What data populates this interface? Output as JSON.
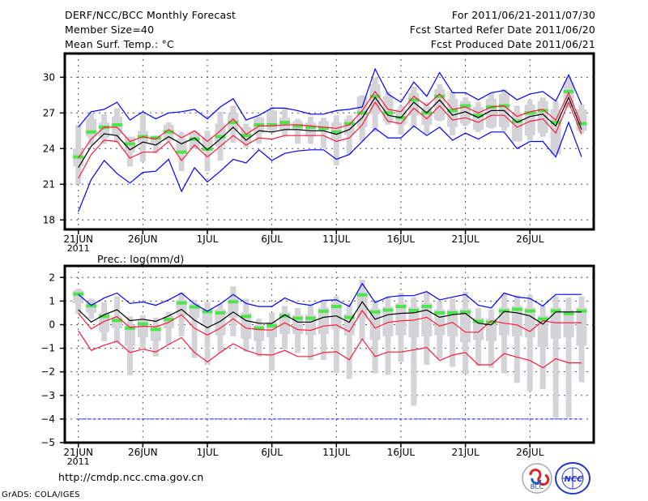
{
  "header": {
    "title": "DERF/NCC/BCC Monthly Forecast",
    "member_size": "Member Size=40",
    "variable": "Mean Surf. Temp.: °C",
    "period": "For 2011/06/21-2011/07/30",
    "started": "Fcst Started Refer Date 2011/06/20",
    "produced": "Fcst Produced Date 2011/06/21"
  },
  "footer": {
    "url": "http://cmdp.ncc.cma.gov.cn",
    "credit": "GrADS: COLA/IGES",
    "logo_bcc": "BCC",
    "logo_ncc": "NCC"
  },
  "colors": {
    "bound": "#0000ff",
    "spread": "#ff1a3c",
    "mean": "#000000",
    "median": "#4ce64c",
    "box": "#d3d3d8"
  },
  "chart_data": [
    {
      "type": "line",
      "title": "Mean Surf. Temp.: °C",
      "x_tick_labels": [
        "21JUN",
        "26JUN",
        "1JUL",
        "6JUL",
        "11JUL",
        "16JUL",
        "21JUL",
        "26JUL"
      ],
      "x_year_label": "2011",
      "x_tick_days": [
        0,
        5,
        10,
        15,
        20,
        25,
        30,
        35
      ],
      "days": 40,
      "ylim": [
        17.2,
        32.0
      ],
      "yticks": [
        18,
        21,
        24,
        27,
        30
      ],
      "ytick_labels": [
        "18",
        "21",
        "24",
        "27",
        "30"
      ],
      "grid": true,
      "series": {
        "max": [
          25.8,
          27.1,
          27.3,
          27.9,
          26.4,
          27.1,
          26.5,
          27.0,
          27.1,
          27.3,
          26.5,
          27.5,
          28.2,
          26.4,
          26.8,
          27.4,
          27.4,
          27.2,
          26.9,
          26.9,
          27.2,
          27.3,
          27.5,
          30.7,
          28.6,
          27.9,
          29.6,
          28.4,
          30.4,
          28.7,
          28.7,
          28.1,
          28.7,
          28.9,
          28.1,
          28.6,
          28.8,
          28.0,
          30.2,
          27.7
        ],
        "min": [
          18.7,
          21.4,
          23.0,
          21.9,
          21.1,
          22.0,
          22.1,
          23.1,
          20.4,
          22.4,
          21.2,
          22.1,
          23.1,
          22.8,
          23.9,
          23.0,
          23.6,
          23.8,
          23.9,
          23.9,
          23.1,
          23.5,
          24.6,
          25.7,
          24.9,
          24.9,
          25.9,
          25.1,
          25.8,
          24.7,
          25.3,
          24.8,
          25.4,
          25.4,
          24.0,
          24.6,
          24.6,
          23.3,
          26.2,
          23.3
        ],
        "upper": [
          23.2,
          24.8,
          25.8,
          25.8,
          24.6,
          25.0,
          24.8,
          25.6,
          24.9,
          25.5,
          24.6,
          25.5,
          26.5,
          25.2,
          25.9,
          25.9,
          26.0,
          26.0,
          25.9,
          25.8,
          25.7,
          26.0,
          27.2,
          28.8,
          27.3,
          27.1,
          28.4,
          27.6,
          28.6,
          27.3,
          27.5,
          27.0,
          27.5,
          27.6,
          26.7,
          27.1,
          27.3,
          26.4,
          28.7,
          26.0
        ],
        "lower": [
          21.5,
          23.5,
          24.7,
          24.6,
          23.2,
          23.7,
          23.7,
          24.6,
          23.0,
          24.3,
          23.3,
          24.2,
          25.1,
          24.3,
          24.9,
          24.8,
          25.1,
          25.1,
          25.1,
          25.1,
          24.6,
          24.9,
          26.0,
          27.9,
          26.3,
          26.1,
          27.4,
          26.5,
          27.6,
          26.4,
          26.6,
          26.2,
          26.8,
          26.8,
          25.8,
          26.3,
          26.5,
          25.3,
          27.9,
          25.2
        ],
        "mean": [
          22.4,
          24.2,
          25.25,
          25.1,
          23.9,
          24.55,
          24.3,
          25.0,
          24.4,
          24.9,
          23.9,
          24.8,
          25.8,
          24.7,
          25.5,
          25.4,
          25.6,
          25.6,
          25.5,
          25.5,
          25.2,
          25.6,
          26.6,
          28.3,
          26.8,
          26.6,
          27.9,
          27.0,
          28.1,
          26.8,
          27.1,
          26.6,
          27.2,
          27.2,
          26.2,
          26.7,
          26.9,
          25.9,
          28.3,
          25.6
        ],
        "median": [
          23.3,
          25.4,
          25.8,
          26.0,
          24.4,
          25.0,
          24.9,
          25.4,
          23.7,
          24.8,
          23.95,
          25.0,
          26.2,
          25.1,
          26.0,
          26.0,
          26.2,
          25.9,
          25.8,
          25.7,
          25.4,
          26.1,
          27.0,
          28.4,
          27.0,
          26.6,
          28.1,
          27.0,
          28.4,
          27.2,
          27.6,
          26.8,
          27.5,
          27.6,
          26.3,
          27.0,
          27.2,
          26.2,
          28.8,
          26.1
        ],
        "whisker_low": [
          21.0,
          24.3,
          24.4,
          24.5,
          22.5,
          22.9,
          23.6,
          24.6,
          22.1,
          24.0,
          22.1,
          23.0,
          24.5,
          24.1,
          24.4,
          25.3,
          25.0,
          24.4,
          24.4,
          24.0,
          22.6,
          23.5,
          24.6,
          25.4,
          26.0,
          25.2,
          25.8,
          25.2,
          26.3,
          25.1,
          25.9,
          25.4,
          25.7,
          25.5,
          25.0,
          24.7,
          25.0,
          23.6,
          27.4,
          25.3
        ],
        "whisker_high": [
          26.0,
          27.0,
          26.9,
          27.4,
          25.0,
          27.0,
          25.1,
          26.2,
          25.4,
          25.5,
          25.5,
          27.1,
          27.6,
          26.1,
          26.7,
          27.5,
          27.4,
          26.5,
          26.7,
          26.6,
          26.8,
          26.8,
          28.5,
          30.0,
          28.8,
          27.6,
          29.2,
          27.9,
          29.4,
          28.8,
          28.3,
          27.9,
          28.7,
          29.0,
          27.6,
          28.1,
          28.3,
          28.0,
          30.0,
          27.7
        ],
        "box_low": [
          22.5,
          25.0,
          24.9,
          25.2,
          23.7,
          24.5,
          24.3,
          24.7,
          23.8,
          24.0,
          23.9,
          24.2,
          25.5,
          24.5,
          25.3,
          25.6,
          25.5,
          25.5,
          25.0,
          25.6,
          24.8,
          25.2,
          25.8,
          26.9,
          26.3,
          26.0,
          26.8,
          26.0,
          26.4,
          25.8,
          26.1,
          25.6,
          25.8,
          25.8,
          24.6,
          25.1,
          25.3,
          23.5,
          27.5,
          25.5
        ],
        "box_high": [
          24.0,
          26.5,
          26.2,
          26.7,
          25.0,
          25.5,
          25.1,
          26.0,
          24.8,
          25.4,
          25.0,
          26.1,
          27.0,
          25.8,
          26.6,
          27.2,
          26.6,
          26.3,
          26.2,
          26.3,
          26.2,
          26.5,
          28.4,
          29.4,
          28.4,
          27.3,
          28.7,
          27.5,
          29.0,
          28.2,
          28.0,
          27.5,
          28.2,
          28.6,
          27.0,
          27.7,
          28.0,
          27.3,
          29.6,
          27.3
        ]
      }
    },
    {
      "type": "line",
      "title": "Prec.: log(mm/d)",
      "x_tick_labels": [
        "21JUN",
        "26JUN",
        "1JUL",
        "6JUL",
        "11JUL",
        "16JUL",
        "21JUL",
        "26JUL"
      ],
      "x_year_label": "2011",
      "x_tick_days": [
        0,
        5,
        10,
        15,
        20,
        25,
        30,
        35
      ],
      "days": 40,
      "ylim": [
        -5,
        2.49
      ],
      "yticks": [
        -5,
        -4,
        -3,
        -2,
        -1,
        0,
        1,
        2
      ],
      "ytick_labels": [
        "−5",
        "−4",
        "−3",
        "−2",
        "−1",
        "0",
        "1",
        "2"
      ],
      "grid": true,
      "reference_line": -4,
      "series": {
        "max": [
          1.28,
          0.82,
          1.13,
          1.34,
          0.9,
          0.96,
          0.82,
          1.05,
          1.34,
          0.88,
          0.57,
          0.88,
          1.28,
          0.9,
          0.77,
          0.77,
          1.13,
          0.9,
          0.82,
          1.03,
          1.05,
          0.77,
          1.74,
          0.94,
          1.17,
          1.23,
          1.23,
          1.4,
          1.05,
          1.17,
          1.28,
          0.82,
          0.71,
          1.34,
          1.17,
          1.11,
          0.79,
          1.28,
          1.28,
          1.28
        ],
        "upper": [
          0.48,
          -0.18,
          0.14,
          0.34,
          -0.11,
          -0.07,
          -0.09,
          0.1,
          0.42,
          -0.15,
          -0.44,
          -0.15,
          0.25,
          -0.15,
          -0.21,
          -0.23,
          0.08,
          -0.21,
          -0.24,
          -0.06,
          -0.01,
          -0.3,
          0.6,
          -0.15,
          0.1,
          0.16,
          0.19,
          0.31,
          -0.06,
          0.1,
          -0.32,
          -0.32,
          0.16,
          0.06,
          -0.01,
          -0.29,
          0.16,
          0.08,
          0.08,
          0.08
        ],
        "lower": [
          -0.26,
          -1.09,
          -0.87,
          -0.7,
          -1.18,
          -1.04,
          -1.16,
          -0.84,
          -0.55,
          -1.18,
          -1.58,
          -1.18,
          -0.81,
          -1.09,
          -1.27,
          -1.29,
          -1.09,
          -1.35,
          -1.35,
          -1.18,
          -1.15,
          -1.49,
          -0.61,
          -1.35,
          -1.16,
          -1.16,
          -1.07,
          -0.97,
          -1.52,
          -1.29,
          -1.18,
          -1.7,
          -1.7,
          -1.22,
          -1.38,
          -1.52,
          -1.83,
          -1.44,
          -1.62,
          -1.62
        ],
        "mean": [
          0.63,
          0.11,
          0.42,
          0.63,
          0.17,
          0.23,
          0.14,
          0.37,
          0.65,
          0.19,
          -0.13,
          0.14,
          0.54,
          0.17,
          0.06,
          0.05,
          0.42,
          0.11,
          0.11,
          0.31,
          0.37,
          0.1,
          0.97,
          0.23,
          0.42,
          0.48,
          0.5,
          0.62,
          0.31,
          0.42,
          0.48,
          0.06,
          -0.01,
          0.56,
          0.5,
          0.37,
          0.02,
          0.54,
          0.54,
          0.54
        ],
        "median": [
          1.3,
          0.8,
          0.35,
          0.18,
          -0.15,
          0.03,
          -0.2,
          0.22,
          0.92,
          0.75,
          0.55,
          0.5,
          0.97,
          0.35,
          -0.15,
          -0.05,
          0.37,
          0.27,
          0.27,
          0.57,
          0.77,
          0.31,
          1.26,
          0.54,
          0.62,
          0.77,
          0.6,
          0.77,
          0.5,
          0.5,
          0.53,
          0.14,
          0.1,
          0.58,
          0.65,
          0.58,
          0.24,
          0.58,
          0.47,
          0.58
        ],
        "whisker_low": [
          0.45,
          0.25,
          -0.7,
          -0.8,
          -2.15,
          -1.0,
          -1.35,
          -0.85,
          -0.5,
          -1.4,
          -1.7,
          -1.2,
          -0.5,
          -1.15,
          -1.35,
          -1.95,
          -1.05,
          -1.2,
          -1.5,
          -1.5,
          -2.05,
          -2.3,
          -0.66,
          -2.06,
          -2.13,
          -1.58,
          -3.44,
          -1.7,
          -1.44,
          -1.79,
          -2.1,
          -1.75,
          -1.83,
          -2.06,
          -2.47,
          -2.82,
          -2.73,
          -3.95,
          -3.95,
          -2.44
        ],
        "whisker_high": [
          1.53,
          1.1,
          0.95,
          1.2,
          0.35,
          0.4,
          0.3,
          0.55,
          1.35,
          1.05,
          0.95,
          0.9,
          1.62,
          1.1,
          0.25,
          0.5,
          0.8,
          0.7,
          0.85,
          1.05,
          1.2,
          0.9,
          1.9,
          1.05,
          1.2,
          1.35,
          1.15,
          1.35,
          1.0,
          1.1,
          1.4,
          0.7,
          0.65,
          1.3,
          1.25,
          1.25,
          0.8,
          1.2,
          1.15,
          1.2
        ],
        "box_low": [
          0.9,
          0.5,
          -0.3,
          -0.15,
          -0.9,
          -0.55,
          -0.7,
          -0.15,
          0.4,
          0.3,
          -0.05,
          -0.45,
          0.3,
          -0.6,
          -0.7,
          -0.55,
          -0.4,
          -0.4,
          -0.45,
          -0.4,
          -0.2,
          -0.45,
          0.25,
          -0.65,
          -0.5,
          -0.45,
          -0.55,
          -0.5,
          -0.45,
          -0.5,
          -0.75,
          -0.65,
          -0.7,
          -0.45,
          -0.5,
          -0.55,
          -0.95,
          -0.6,
          -0.55,
          -0.9
        ],
        "box_high": [
          1.45,
          0.95,
          0.5,
          0.33,
          0.0,
          0.18,
          -0.05,
          0.37,
          1.07,
          0.9,
          0.7,
          0.65,
          1.12,
          0.5,
          0.0,
          0.1,
          0.52,
          0.42,
          0.42,
          0.72,
          0.92,
          0.46,
          1.41,
          0.69,
          0.77,
          0.92,
          0.75,
          0.92,
          0.65,
          0.65,
          0.68,
          0.29,
          0.25,
          0.73,
          0.8,
          0.73,
          0.39,
          0.73,
          0.62,
          0.73
        ]
      }
    }
  ]
}
